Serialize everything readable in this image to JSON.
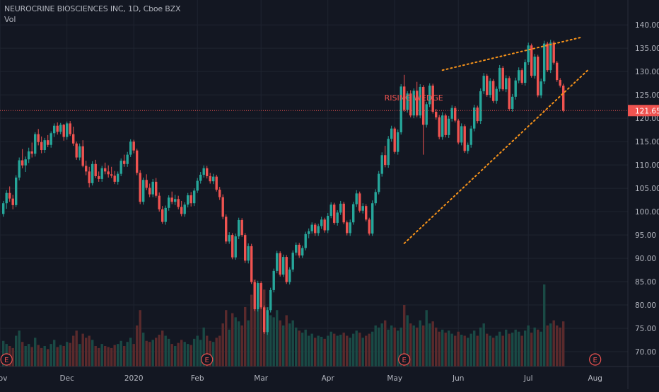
{
  "legend": {
    "symbol_name": "NEUROCRINE BIOSCIENCES INC",
    "interval": "1D",
    "exchange": "Cboe BZX",
    "volume_label": "Vol"
  },
  "colors": {
    "background": "#131722",
    "grid": "#1f2430",
    "up": "#26a69a",
    "down": "#ef5350",
    "up_volume": "#1a4a45",
    "down_volume": "#5a2a2c",
    "annotation": "#f7931a",
    "price_line": "#ef5350",
    "axis_text": "#b2b5be"
  },
  "chart_data": {
    "type": "candlestick",
    "price_axis": {
      "min": 65,
      "max": 142,
      "ticks": [
        70,
        75,
        80,
        85,
        90,
        95,
        100,
        105,
        110,
        115,
        120,
        125,
        130,
        135,
        140
      ]
    },
    "time_axis": {
      "labels": [
        "Nov",
        "Dec",
        "2020",
        "Feb",
        "Mar",
        "Apr",
        "May",
        "Jun",
        "Jul",
        "Aug"
      ],
      "label_bar_index": [
        -1,
        20,
        41,
        61,
        81,
        102,
        123,
        143,
        165,
        186
      ]
    },
    "last_price": 121.65,
    "last_price_label": "121.65",
    "annotations": [
      {
        "type": "text",
        "text": "RISING WEDGE",
        "bar": 129,
        "price": 123.8
      },
      {
        "type": "trendline",
        "name": "wedge-upper-line",
        "from": {
          "bar": 138,
          "price": 130.3
        },
        "to": {
          "bar": 182,
          "price": 137.4
        }
      },
      {
        "type": "trendline",
        "name": "wedge-lower-line",
        "from": {
          "bar": 126,
          "price": 93.2
        },
        "to": {
          "bar": 184,
          "price": 130.5
        }
      }
    ],
    "earnings_markers": [
      {
        "label": "E",
        "bar": 1
      },
      {
        "label": "E",
        "bar": 64
      },
      {
        "label": "E",
        "bar": 126
      },
      {
        "label": "E",
        "bar": 186
      }
    ],
    "candles": [
      [
        99.5,
        102.3,
        98.9,
        101.8
      ],
      [
        101.8,
        104.6,
        100.6,
        104.0
      ],
      [
        104.0,
        105.4,
        102.1,
        102.8
      ],
      [
        102.8,
        103.6,
        100.5,
        101.4
      ],
      [
        101.4,
        107.8,
        101.0,
        107.3
      ],
      [
        107.3,
        111.6,
        106.7,
        111.0
      ],
      [
        111.0,
        113.4,
        109.3,
        109.9
      ],
      [
        109.9,
        111.8,
        108.5,
        111.2
      ],
      [
        111.2,
        113.7,
        110.4,
        112.9
      ],
      [
        112.9,
        114.8,
        111.6,
        112.4
      ],
      [
        112.4,
        117.0,
        111.8,
        116.6
      ],
      [
        116.6,
        117.7,
        114.2,
        114.9
      ],
      [
        114.9,
        116.1,
        112.5,
        113.2
      ],
      [
        113.2,
        115.8,
        112.6,
        115.3
      ],
      [
        115.3,
        116.4,
        113.8,
        114.3
      ],
      [
        114.3,
        117.2,
        113.7,
        116.8
      ],
      [
        116.8,
        118.9,
        116.0,
        118.4
      ],
      [
        118.4,
        119.1,
        116.5,
        117.1
      ],
      [
        117.1,
        119.0,
        116.6,
        118.6
      ],
      [
        118.6,
        118.8,
        115.2,
        116.0
      ],
      [
        116.0,
        119.3,
        115.4,
        118.9
      ],
      [
        118.9,
        119.4,
        116.2,
        116.6
      ],
      [
        116.6,
        118.2,
        114.1,
        114.6
      ],
      [
        114.6,
        115.0,
        111.1,
        111.6
      ],
      [
        111.6,
        114.6,
        111.0,
        114.0
      ],
      [
        114.0,
        115.3,
        109.5,
        109.8
      ],
      [
        109.8,
        110.9,
        107.8,
        108.6
      ],
      [
        108.6,
        109.6,
        105.2,
        106.1
      ],
      [
        106.1,
        110.8,
        105.6,
        110.2
      ],
      [
        110.2,
        111.1,
        107.2,
        107.6
      ],
      [
        107.6,
        108.6,
        106.4,
        107.0
      ],
      [
        107.0,
        109.8,
        106.4,
        109.3
      ],
      [
        109.3,
        110.5,
        108.0,
        108.6
      ],
      [
        108.6,
        109.9,
        107.3,
        108.0
      ],
      [
        108.0,
        109.6,
        107.2,
        107.7
      ],
      [
        107.7,
        108.7,
        105.9,
        106.4
      ],
      [
        106.4,
        108.6,
        105.8,
        108.1
      ],
      [
        108.1,
        111.4,
        107.6,
        110.9
      ],
      [
        110.9,
        112.2,
        109.6,
        110.2
      ],
      [
        110.2,
        112.8,
        109.6,
        112.2
      ],
      [
        112.2,
        115.5,
        111.7,
        115.0
      ],
      [
        115.0,
        115.4,
        112.5,
        113.1
      ],
      [
        113.1,
        113.5,
        107.8,
        108.3
      ],
      [
        108.3,
        108.9,
        101.6,
        102.1
      ],
      [
        102.1,
        107.3,
        101.5,
        106.8
      ],
      [
        106.8,
        108.0,
        104.6,
        105.1
      ],
      [
        105.1,
        106.0,
        103.1,
        103.7
      ],
      [
        103.7,
        107.0,
        103.1,
        106.4
      ],
      [
        106.4,
        107.2,
        103.0,
        103.4
      ],
      [
        103.4,
        104.1,
        100.0,
        100.5
      ],
      [
        100.5,
        101.2,
        97.4,
        97.8
      ],
      [
        97.8,
        101.3,
        97.2,
        100.8
      ],
      [
        100.8,
        103.5,
        100.2,
        103.0
      ],
      [
        103.0,
        104.3,
        101.6,
        102.1
      ],
      [
        102.1,
        103.6,
        101.4,
        102.7
      ],
      [
        102.7,
        103.4,
        100.5,
        101.0
      ],
      [
        101.0,
        102.3,
        99.0,
        99.5
      ],
      [
        99.5,
        102.0,
        98.9,
        101.5
      ],
      [
        101.5,
        104.0,
        100.9,
        103.5
      ],
      [
        103.5,
        104.2,
        101.1,
        101.8
      ],
      [
        101.8,
        105.0,
        101.2,
        104.5
      ],
      [
        104.5,
        107.2,
        104.0,
        106.6
      ],
      [
        106.6,
        108.5,
        106.0,
        107.9
      ],
      [
        107.9,
        109.9,
        107.3,
        109.3
      ],
      [
        109.3,
        109.8,
        107.1,
        107.6
      ],
      [
        107.6,
        108.3,
        106.0,
        106.5
      ],
      [
        106.5,
        108.1,
        105.9,
        107.5
      ],
      [
        107.5,
        107.9,
        104.3,
        104.7
      ],
      [
        104.7,
        105.3,
        102.5,
        103.1
      ],
      [
        103.1,
        103.7,
        98.4,
        98.9
      ],
      [
        98.9,
        99.4,
        93.1,
        93.6
      ],
      [
        93.6,
        95.6,
        93.1,
        95.0
      ],
      [
        95.0,
        95.4,
        89.8,
        90.2
      ],
      [
        90.2,
        95.3,
        89.7,
        94.7
      ],
      [
        94.7,
        98.7,
        94.1,
        98.2
      ],
      [
        98.2,
        98.6,
        94.6,
        95.0
      ],
      [
        95.0,
        95.4,
        89.0,
        89.5
      ],
      [
        89.5,
        93.2,
        88.9,
        92.6
      ],
      [
        92.6,
        93.1,
        84.5,
        84.9
      ],
      [
        84.9,
        85.3,
        78.7,
        79.1
      ],
      [
        79.1,
        85.2,
        78.6,
        84.7
      ],
      [
        84.7,
        85.1,
        79.1,
        79.5
      ],
      [
        79.5,
        79.9,
        73.8,
        74.2
      ],
      [
        74.2,
        79.5,
        73.6,
        78.9
      ],
      [
        78.9,
        83.7,
        78.4,
        83.2
      ],
      [
        83.2,
        87.8,
        82.7,
        87.3
      ],
      [
        87.3,
        91.6,
        86.8,
        91.1
      ],
      [
        91.1,
        91.5,
        86.1,
        86.5
      ],
      [
        86.5,
        90.8,
        86.0,
        90.3
      ],
      [
        90.3,
        90.7,
        84.5,
        84.9
      ],
      [
        84.9,
        88.1,
        84.4,
        87.6
      ],
      [
        87.6,
        91.7,
        87.1,
        91.2
      ],
      [
        91.2,
        93.4,
        90.6,
        92.9
      ],
      [
        92.9,
        93.3,
        90.1,
        90.6
      ],
      [
        90.6,
        92.7,
        90.1,
        92.2
      ],
      [
        92.2,
        95.7,
        91.7,
        95.2
      ],
      [
        95.2,
        96.4,
        94.3,
        95.8
      ],
      [
        95.8,
        97.7,
        95.3,
        97.2
      ],
      [
        97.2,
        97.6,
        94.8,
        95.4
      ],
      [
        95.4,
        97.4,
        94.8,
        96.9
      ],
      [
        96.9,
        98.9,
        96.3,
        98.3
      ],
      [
        98.3,
        98.7,
        95.5,
        96.0
      ],
      [
        96.0,
        99.7,
        95.4,
        99.1
      ],
      [
        99.1,
        102.0,
        98.6,
        101.5
      ],
      [
        101.5,
        101.9,
        97.2,
        97.6
      ],
      [
        97.6,
        100.3,
        97.0,
        99.8
      ],
      [
        99.8,
        102.3,
        99.3,
        101.7
      ],
      [
        101.7,
        102.1,
        97.3,
        97.7
      ],
      [
        97.7,
        98.1,
        94.9,
        95.4
      ],
      [
        95.4,
        98.3,
        94.8,
        97.7
      ],
      [
        97.7,
        102.1,
        97.2,
        101.6
      ],
      [
        101.6,
        104.6,
        101.0,
        103.9
      ],
      [
        103.9,
        104.3,
        99.8,
        100.2
      ],
      [
        100.2,
        101.8,
        99.6,
        101.2
      ],
      [
        101.2,
        101.6,
        97.9,
        98.3
      ],
      [
        98.3,
        98.7,
        94.9,
        95.3
      ],
      [
        95.3,
        102.4,
        94.8,
        101.8
      ],
      [
        101.8,
        104.8,
        101.3,
        104.2
      ],
      [
        104.2,
        108.7,
        103.7,
        108.1
      ],
      [
        108.1,
        112.7,
        107.5,
        112.1
      ],
      [
        112.1,
        114.1,
        109.5,
        110.0
      ],
      [
        110.0,
        116.2,
        109.4,
        115.6
      ],
      [
        115.6,
        118.4,
        115.0,
        117.8
      ],
      [
        117.8,
        118.2,
        112.4,
        112.8
      ],
      [
        112.8,
        117.6,
        112.2,
        117.0
      ],
      [
        117.0,
        127.3,
        116.5,
        126.8
      ],
      [
        126.8,
        129.3,
        121.4,
        121.8
      ],
      [
        121.8,
        125.8,
        121.2,
        125.3
      ],
      [
        125.3,
        126.0,
        120.2,
        120.6
      ],
      [
        120.6,
        126.4,
        120.0,
        125.9
      ],
      [
        125.9,
        127.8,
        120.2,
        120.6
      ],
      [
        120.6,
        127.3,
        120.0,
        126.7
      ],
      [
        126.7,
        127.1,
        112.2,
        118.6
      ],
      [
        118.6,
        123.5,
        118.0,
        123.0
      ],
      [
        123.0,
        127.5,
        122.4,
        127.0
      ],
      [
        127.0,
        127.4,
        121.0,
        121.4
      ],
      [
        121.4,
        122.0,
        119.7,
        120.2
      ],
      [
        120.2,
        120.7,
        115.5,
        116.0
      ],
      [
        116.0,
        121.3,
        115.4,
        120.6
      ],
      [
        120.6,
        121.0,
        115.9,
        116.4
      ],
      [
        116.4,
        120.5,
        115.8,
        119.9
      ],
      [
        119.9,
        122.8,
        119.3,
        122.2
      ],
      [
        122.2,
        122.6,
        119.1,
        119.5
      ],
      [
        119.5,
        119.9,
        114.4,
        114.8
      ],
      [
        114.8,
        118.9,
        114.2,
        118.3
      ],
      [
        118.3,
        118.7,
        112.6,
        113.0
      ],
      [
        113.0,
        114.8,
        112.4,
        114.3
      ],
      [
        114.3,
        118.4,
        113.7,
        117.8
      ],
      [
        117.8,
        122.9,
        117.2,
        122.3
      ],
      [
        122.3,
        122.7,
        118.9,
        119.4
      ],
      [
        119.4,
        126.4,
        118.8,
        125.8
      ],
      [
        125.8,
        129.7,
        125.2,
        129.1
      ],
      [
        129.1,
        129.5,
        124.6,
        125.0
      ],
      [
        125.0,
        128.6,
        124.4,
        128.0
      ],
      [
        128.0,
        128.4,
        123.3,
        123.7
      ],
      [
        123.7,
        126.8,
        123.1,
        126.3
      ],
      [
        126.3,
        131.4,
        125.7,
        130.8
      ],
      [
        130.8,
        131.2,
        125.8,
        126.2
      ],
      [
        126.2,
        129.2,
        125.6,
        128.6
      ],
      [
        128.6,
        129.0,
        121.6,
        122.0
      ],
      [
        122.0,
        125.2,
        121.4,
        124.6
      ],
      [
        124.6,
        128.7,
        124.0,
        128.1
      ],
      [
        128.1,
        130.9,
        127.5,
        130.3
      ],
      [
        130.3,
        130.7,
        127.2,
        127.6
      ],
      [
        127.6,
        132.6,
        127.0,
        132.0
      ],
      [
        132.0,
        136.2,
        131.4,
        135.6
      ],
      [
        135.6,
        136.0,
        128.7,
        129.1
      ],
      [
        129.1,
        133.8,
        128.5,
        133.2
      ],
      [
        133.2,
        133.6,
        124.5,
        124.9
      ],
      [
        124.9,
        128.5,
        124.3,
        127.9
      ],
      [
        127.9,
        136.6,
        127.3,
        136.0
      ],
      [
        136.0,
        136.4,
        129.9,
        130.3
      ],
      [
        130.3,
        136.8,
        129.7,
        136.2
      ],
      [
        136.2,
        136.6,
        131.5,
        131.9
      ],
      [
        131.9,
        132.3,
        127.8,
        128.2
      ],
      [
        128.2,
        128.6,
        126.6,
        127.0
      ],
      [
        127.0,
        127.4,
        121.3,
        121.65
      ]
    ],
    "volume": [
      0.25,
      0.22,
      0.2,
      0.18,
      0.3,
      0.35,
      0.24,
      0.2,
      0.22,
      0.19,
      0.28,
      0.21,
      0.18,
      0.2,
      0.17,
      0.22,
      0.26,
      0.19,
      0.21,
      0.2,
      0.24,
      0.23,
      0.3,
      0.35,
      0.22,
      0.32,
      0.28,
      0.3,
      0.26,
      0.2,
      0.18,
      0.22,
      0.2,
      0.19,
      0.18,
      0.21,
      0.22,
      0.25,
      0.2,
      0.24,
      0.28,
      0.22,
      0.4,
      0.55,
      0.33,
      0.25,
      0.24,
      0.26,
      0.28,
      0.31,
      0.35,
      0.3,
      0.27,
      0.22,
      0.2,
      0.23,
      0.26,
      0.24,
      0.22,
      0.21,
      0.27,
      0.3,
      0.26,
      0.38,
      0.3,
      0.25,
      0.24,
      0.28,
      0.3,
      0.42,
      0.55,
      0.36,
      0.52,
      0.48,
      0.44,
      0.4,
      0.58,
      0.45,
      0.7,
      0.85,
      0.62,
      0.6,
      0.75,
      0.58,
      0.5,
      0.48,
      0.55,
      0.45,
      0.4,
      0.5,
      0.42,
      0.45,
      0.38,
      0.35,
      0.33,
      0.36,
      0.3,
      0.32,
      0.28,
      0.3,
      0.29,
      0.27,
      0.3,
      0.34,
      0.32,
      0.3,
      0.31,
      0.33,
      0.3,
      0.28,
      0.32,
      0.35,
      0.33,
      0.28,
      0.3,
      0.32,
      0.34,
      0.4,
      0.38,
      0.42,
      0.45,
      0.36,
      0.4,
      0.38,
      0.35,
      0.38,
      0.6,
      0.5,
      0.42,
      0.4,
      0.38,
      0.45,
      0.4,
      0.55,
      0.42,
      0.44,
      0.38,
      0.34,
      0.36,
      0.33,
      0.35,
      0.32,
      0.3,
      0.34,
      0.31,
      0.3,
      0.28,
      0.32,
      0.35,
      0.3,
      0.38,
      0.42,
      0.32,
      0.3,
      0.28,
      0.3,
      0.34,
      0.3,
      0.36,
      0.32,
      0.33,
      0.36,
      0.34,
      0.3,
      0.35,
      0.4,
      0.33,
      0.38,
      0.36,
      0.34,
      0.8,
      0.4,
      0.42,
      0.45,
      0.4,
      0.38,
      0.44
    ]
  }
}
